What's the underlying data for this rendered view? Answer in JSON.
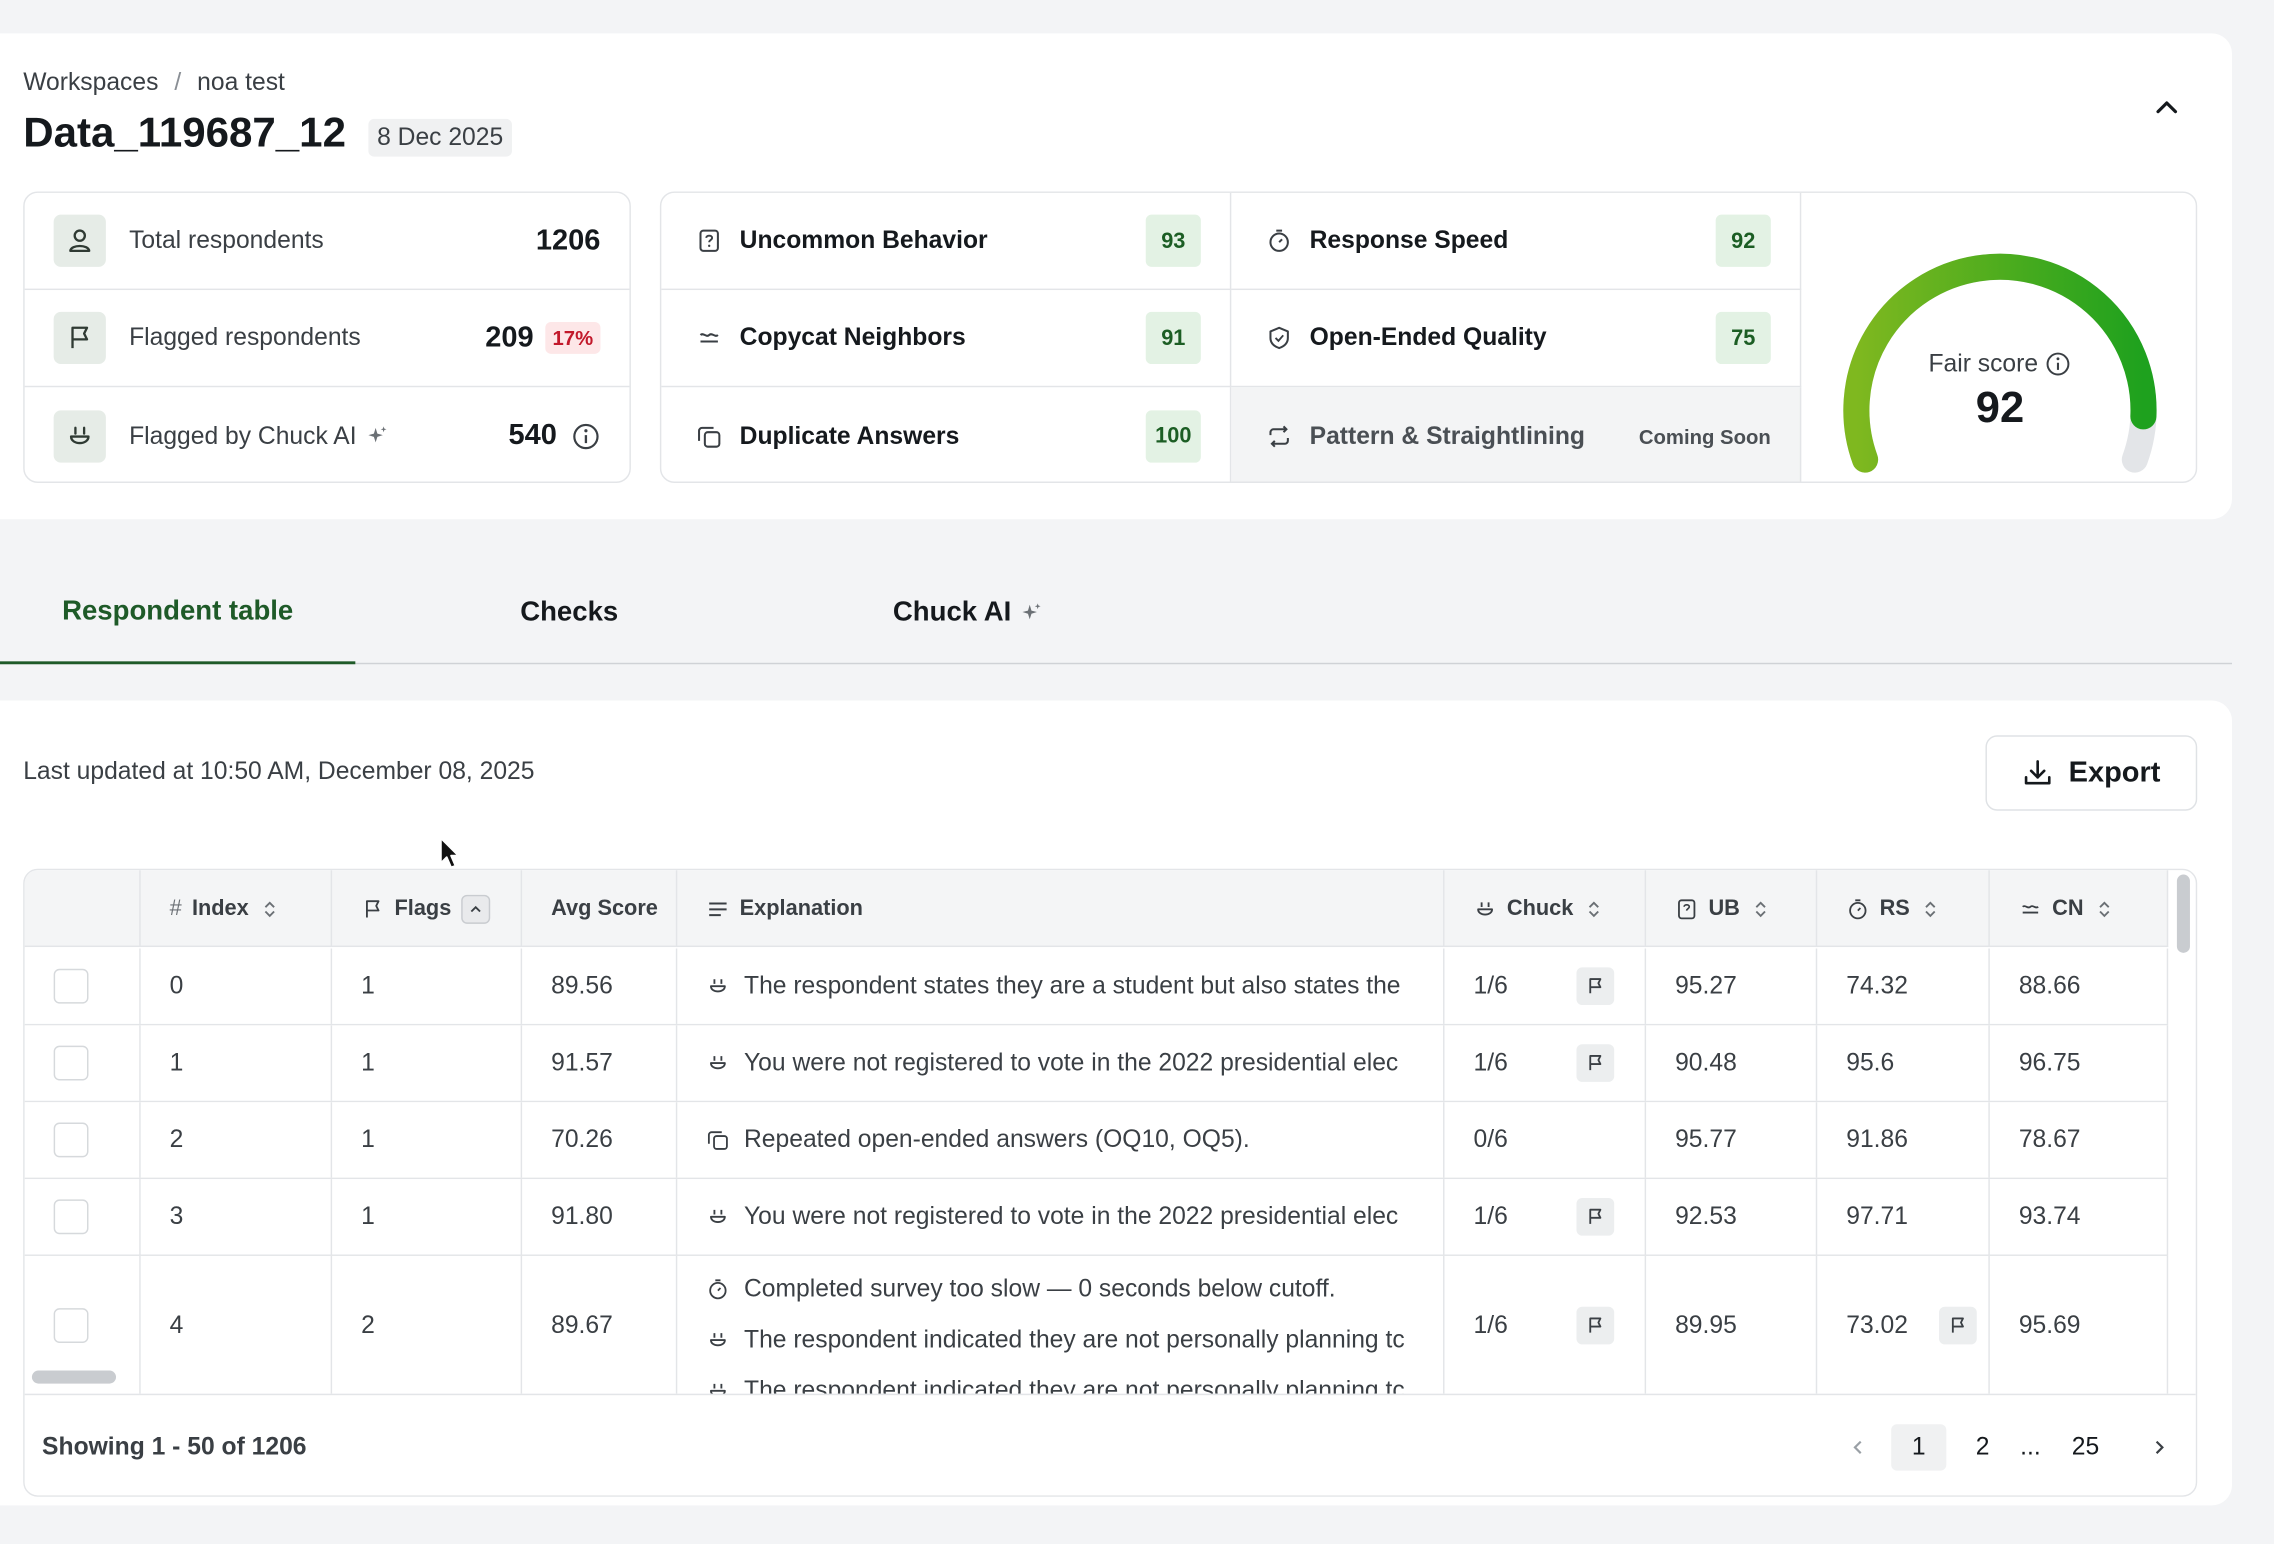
{
  "breadcrumb": {
    "root": "Workspaces",
    "separator": "/",
    "current": "noa test"
  },
  "dataset": {
    "title": "Data_119687_12",
    "date": "8 Dec 2025"
  },
  "stats": {
    "total": {
      "label": "Total respondents",
      "value": "1206"
    },
    "flagged": {
      "label": "Flagged respondents",
      "value": "209",
      "percent": "17%"
    },
    "chuck": {
      "label": "Flagged by Chuck AI",
      "value": "540"
    }
  },
  "checks": {
    "uncommon": {
      "label": "Uncommon Behavior",
      "score": "93"
    },
    "copycat": {
      "label": "Copycat Neighbors",
      "score": "91"
    },
    "duplicate": {
      "label": "Duplicate Answers",
      "score": "100"
    },
    "speed": {
      "label": "Response Speed",
      "score": "92"
    },
    "openended": {
      "label": "Open-Ended Quality",
      "score": "75"
    },
    "pattern": {
      "label": "Pattern & Straightlining",
      "status": "Coming Soon"
    }
  },
  "fair_score": {
    "label": "Fair score",
    "value": "92",
    "fraction": 0.92,
    "color": "#1ea11e"
  },
  "tabs": {
    "respondent": "Respondent table",
    "checks": "Checks",
    "chuck": "Chuck AI"
  },
  "table_header": {
    "last_updated": "Last updated at 10:50 AM, December 08, 2025",
    "export": "Export"
  },
  "columns": {
    "index": "Index",
    "flags": "Flags",
    "avg": "Avg Score",
    "explanation": "Explanation",
    "chuck": "Chuck",
    "ub": "UB",
    "rs": "RS",
    "cn": "CN"
  },
  "rows": [
    {
      "index": "0",
      "flags": "1",
      "avg": "89.56",
      "expl": [
        "The respondent states they are a student but also states the"
      ],
      "chuck": "1/6",
      "ub": "95.27",
      "rs": "74.32",
      "cn": "88.66"
    },
    {
      "index": "1",
      "flags": "1",
      "avg": "91.57",
      "expl": [
        "You were not registered to vote in the 2022 presidential elec"
      ],
      "chuck": "1/6",
      "ub": "90.48",
      "rs": "95.6",
      "cn": "96.75"
    },
    {
      "index": "2",
      "flags": "1",
      "avg": "70.26",
      "expl": [
        "Repeated open-ended answers (OQ10, OQ5)."
      ],
      "chuck": "0/6",
      "ub": "95.77",
      "rs": "91.86",
      "cn": "78.67"
    },
    {
      "index": "3",
      "flags": "1",
      "avg": "91.80",
      "expl": [
        "You were not registered to vote in the 2022 presidential elec"
      ],
      "chuck": "1/6",
      "ub": "92.53",
      "rs": "97.71",
      "cn": "93.74"
    },
    {
      "index": "4",
      "flags": "2",
      "avg": "89.67",
      "expl": [
        "Completed survey too slow — 0 seconds below cutoff.",
        "The respondent indicated they are not personally planning tc",
        "The respondent indicated they are not personally planning tc"
      ],
      "chuck": "1/6",
      "ub": "89.95",
      "rs": "73.02",
      "cn": "95.69"
    }
  ],
  "footer": {
    "showing": "Showing 1 - 50 of 1206",
    "pages": [
      "1",
      "2",
      "...",
      "25"
    ]
  }
}
